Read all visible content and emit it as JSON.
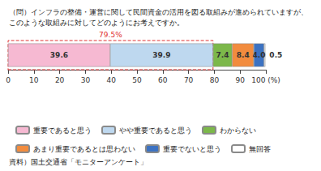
{
  "chart_data": {
    "type": "bar",
    "orientation": "horizontal",
    "stacked": true,
    "data_labels": true,
    "grid": false,
    "tick_labels": "x",
    "legend": "bottom",
    "title": "（問）インフラの整備・運営に関して民間資金の活用を図る取組みが進められていますが、\nこのような取組みに対してどのようにお考えですか。",
    "source": "資料）国土交通省「モニターアンケート」",
    "annotations": [
      {
        "text": "79.5%",
        "x": 79.5
      }
    ],
    "categories": [
      null
    ],
    "xlim": [
      0,
      100
    ],
    "xticks": [
      0,
      10,
      20,
      30,
      40,
      50,
      60,
      70,
      80,
      90,
      {
        "value": 100,
        "label": "100 (%)"
      }
    ],
    "series": [
      {
        "name": "重要であると思う",
        "color": "#f6b9d2",
        "values": [
          39.6
        ],
        "value_labels": [
          "39.6"
        ]
      },
      {
        "name": "やや重要であると思う",
        "color": "#bed8ef",
        "values": [
          39.9
        ],
        "value_labels": [
          "39.9"
        ]
      },
      {
        "name": "わからない",
        "color": "#7cb84a",
        "values": [
          7.4
        ],
        "value_labels": [
          "7.4"
        ]
      },
      {
        "name": "あまり重要であるとは思わない",
        "color": "#f28c3e",
        "values": [
          8.4
        ],
        "value_labels": [
          "8.4"
        ]
      },
      {
        "name": "重要でないと思う",
        "color": "#3c72c2",
        "values": [
          4.0
        ],
        "value_labels": [
          "4.0"
        ]
      },
      {
        "name": "無回答",
        "color": "#ffffff",
        "values": [
          0.5
        ],
        "value_labels": [
          "0.5"
        ]
      }
    ]
  }
}
